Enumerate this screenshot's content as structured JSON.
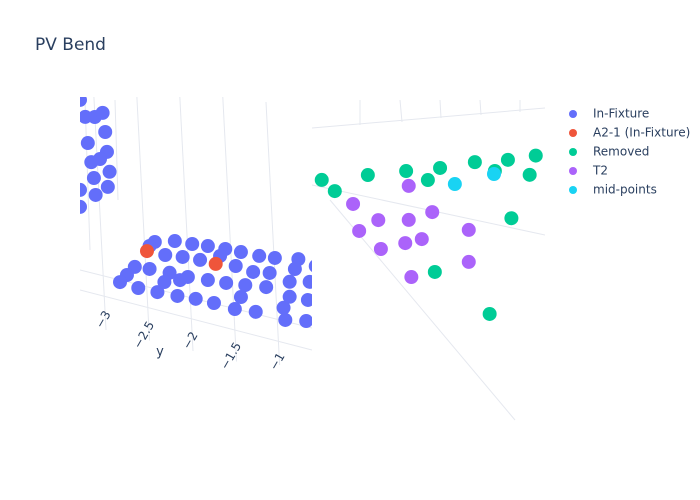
{
  "chart_data": {
    "type": "scatter3d",
    "title": "PV Bend",
    "y_label": "y",
    "yticks": [
      {
        "value": -3,
        "label": "−3"
      },
      {
        "value": -2.5,
        "label": "−2.5"
      },
      {
        "value": -2,
        "label": "−2"
      },
      {
        "value": -1.5,
        "label": "−1.5"
      },
      {
        "value": -1,
        "label": "−1"
      }
    ],
    "series": [
      {
        "name": "In-Fixture",
        "color": "#636efa",
        "scene": 1,
        "y": [
          -3.23,
          -3.17,
          -3.06,
          -2.97,
          -2.94,
          -3.14,
          -2.92,
          -3.1,
          -3.0,
          -2.89,
          -3.07,
          -3.23,
          -2.91,
          -3.05,
          -3.23,
          -2.37,
          -2.14,
          -1.94,
          -1.76,
          -1.56,
          -1.38,
          -1.17,
          -0.99,
          -2.43,
          -2.25,
          -2.05,
          -1.85,
          -1.62,
          -1.44,
          -1.24,
          -1.05,
          -0.76,
          -0.72,
          -0.52,
          -2.6,
          -2.43,
          -2.2,
          -1.99,
          -1.76,
          -1.55,
          -1.33,
          -1.09,
          -0.82,
          -0.59,
          -2.69,
          -2.77,
          -2.56,
          -2.34,
          -2.11,
          -1.9,
          -1.69,
          -1.45,
          -1.21,
          -0.89,
          -0.82,
          -0.61,
          -1.38,
          -2.26,
          -2.08,
          -0.63,
          -0.87
        ],
        "z": [
          8.21,
          7.58,
          7.67,
          7.91,
          7.17,
          6.56,
          6.39,
          5.83,
          6.04,
          5.62,
          5.22,
          4.61,
          5.0,
          4.56,
          3.93,
          3.25,
          3.48,
          3.53,
          3.6,
          3.65,
          3.68,
          3.7,
          3.77,
          3.04,
          2.83,
          2.92,
          2.97,
          3.32,
          3.07,
          3.0,
          3.12,
          3.52,
          3.95,
          3.84,
          2.06,
          2.12,
          2.16,
          2.17,
          2.24,
          2.3,
          2.4,
          2.52,
          2.96,
          3.15,
          1.66,
          1.31,
          1.25,
          1.27,
          1.31,
          1.37,
          1.38,
          1.34,
          1.43,
          1.86,
          2.36,
          2.41,
          1.88,
          1.74,
          1.97,
          1.55,
          1.39
        ]
      },
      {
        "name": "A2-1 (In-Fixture)",
        "color": "#EF553B",
        "scene": 1,
        "y": [
          -2.46,
          -1.67
        ],
        "z": [
          2.81,
          2.96
        ]
      },
      {
        "name": "Removed",
        "color": "#00cc96",
        "scene": 2,
        "y": [
          -2.98,
          -2.83,
          -2.45,
          -2.01,
          -1.76,
          -1.62,
          -1.22,
          -0.99,
          -0.84,
          -0.59,
          -0.52,
          -0.8,
          -1.68,
          -1.05
        ],
        "z": [
          5.22,
          4.9,
          5.86,
          6.39,
          6.24,
          6.84,
          7.41,
          7.25,
          7.82,
          7.43,
          8.26,
          5.52,
          2.63,
          1.48
        ]
      },
      {
        "name": "T2",
        "color": "#ab63fa",
        "scene": 2,
        "y": [
          -1.98,
          -2.62,
          -2.33,
          -1.98,
          -1.71,
          -2.55,
          -2.3,
          -2.02,
          -1.83,
          -1.29,
          -1.29,
          -1.95
        ],
        "z": [
          5.82,
          4.56,
          4.16,
          4.46,
          5.0,
          3.54,
          3.03,
          3.5,
          3.82,
          4.64,
          3.36,
          2.2
        ]
      },
      {
        "name": "mid-points",
        "color": "#19d3f3",
        "scene": 2,
        "y": [
          -1.45,
          -1.0
        ],
        "z": [
          6.34,
          7.12
        ]
      }
    ]
  }
}
